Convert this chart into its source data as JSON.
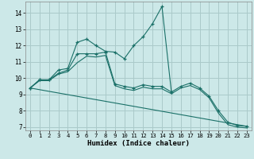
{
  "xlabel": "Humidex (Indice chaleur)",
  "bg_color": "#cce8e8",
  "grid_color": "#aacaca",
  "line_color": "#1a7068",
  "x_ticks": [
    0,
    1,
    2,
    3,
    4,
    5,
    6,
    7,
    8,
    9,
    10,
    11,
    12,
    13,
    14,
    15,
    16,
    17,
    18,
    19,
    20,
    21,
    22,
    23
  ],
  "y_ticks": [
    7,
    8,
    9,
    10,
    11,
    12,
    13,
    14
  ],
  "xlim": [
    -0.5,
    23.5
  ],
  "ylim": [
    6.8,
    14.7
  ],
  "series": [
    {
      "x": [
        0,
        1,
        2,
        3,
        4,
        5,
        6,
        7,
        8,
        9,
        10,
        11,
        12,
        13,
        14,
        15
      ],
      "y": [
        9.4,
        9.9,
        9.9,
        10.5,
        10.6,
        12.2,
        12.4,
        12.0,
        11.65,
        11.6,
        11.2,
        12.0,
        12.55,
        13.35,
        14.4,
        9.15
      ],
      "marker": true,
      "linestyle": "-"
    },
    {
      "x": [
        0,
        1,
        2,
        3,
        4,
        5,
        6,
        7,
        8,
        9,
        10,
        11,
        12,
        13,
        14,
        15,
        16,
        17,
        18,
        19,
        20,
        21,
        22,
        23
      ],
      "y": [
        9.4,
        9.9,
        9.9,
        10.3,
        10.5,
        11.5,
        11.5,
        11.5,
        11.6,
        9.65,
        9.5,
        9.4,
        9.6,
        9.5,
        9.5,
        9.15,
        9.5,
        9.7,
        9.4,
        8.9,
        8.0,
        7.3,
        7.1,
        7.05
      ],
      "marker": true,
      "linestyle": "-"
    },
    {
      "x": [
        0,
        1,
        2,
        3,
        4,
        5,
        6,
        7,
        8,
        9,
        10,
        11,
        12,
        13,
        14,
        15,
        16,
        17,
        18,
        19,
        20,
        21,
        22,
        23
      ],
      "y": [
        9.4,
        9.85,
        9.85,
        10.25,
        10.4,
        10.95,
        11.35,
        11.3,
        11.4,
        9.55,
        9.35,
        9.25,
        9.45,
        9.35,
        9.35,
        9.05,
        9.4,
        9.55,
        9.3,
        8.8,
        7.85,
        7.15,
        7.0,
        6.95
      ],
      "marker": false,
      "linestyle": "-"
    },
    {
      "x": [
        0,
        23
      ],
      "y": [
        9.4,
        7.05
      ],
      "marker": false,
      "linestyle": "-"
    }
  ]
}
